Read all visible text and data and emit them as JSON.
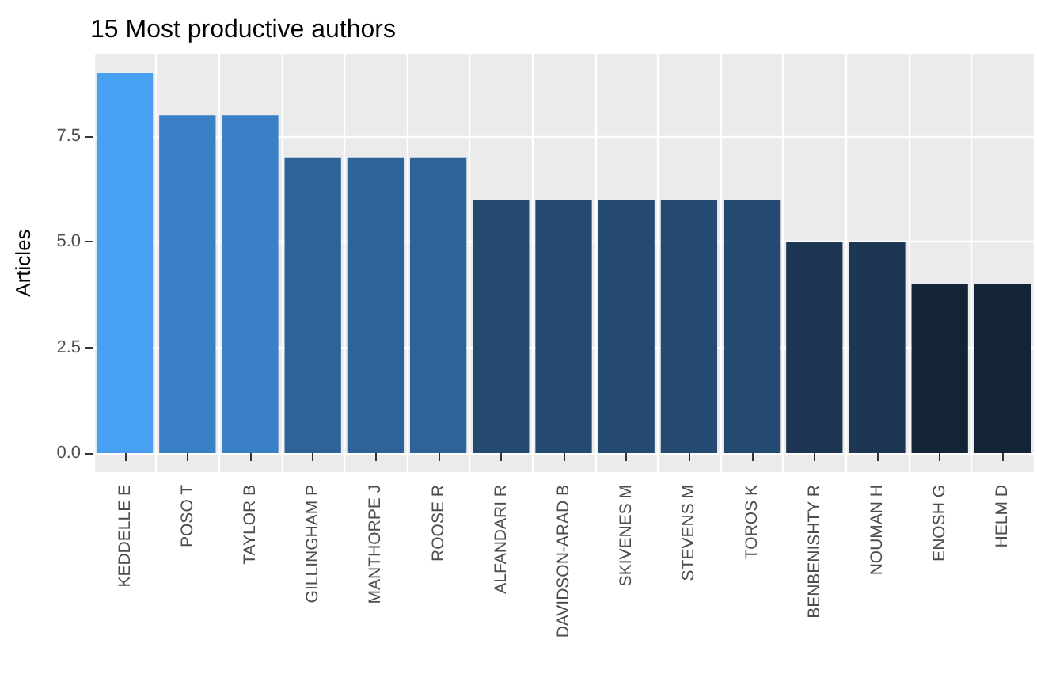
{
  "chart_data": {
    "type": "bar",
    "title": "15 Most productive authors",
    "ylabel": "Articles",
    "categories": [
      "KEDDELLE E",
      "POSO T",
      "TAYLOR B",
      "GILLINGHAM P",
      "MANTHORPE J",
      "ROOSE R",
      "ALFANDARI R",
      "DAVIDSON-ARAD B",
      "SKIVENES M",
      "STEVENS M",
      "TOROS K",
      "BENBENISHTY R",
      "NOUMAN H",
      "ENOSH G",
      "HELM D"
    ],
    "values": [
      9,
      8,
      8,
      7,
      7,
      7,
      6,
      6,
      6,
      6,
      6,
      5,
      5,
      4,
      4
    ],
    "colors": [
      "#47a0f2",
      "#3a80c6",
      "#3a80c6",
      "#2d6398",
      "#2d6398",
      "#2d6398",
      "#244a71",
      "#244a71",
      "#244a71",
      "#244a71",
      "#244a71",
      "#1c3654",
      "#1c3654",
      "#132439",
      "#132439"
    ],
    "ylim": [
      -0.45,
      9.45
    ],
    "yticks": [
      {
        "value": 0,
        "label": "0.0"
      },
      {
        "value": 2.5,
        "label": "2.5"
      },
      {
        "value": 5,
        "label": "5.0"
      },
      {
        "value": 7.5,
        "label": "7.5"
      }
    ],
    "grid": true
  }
}
